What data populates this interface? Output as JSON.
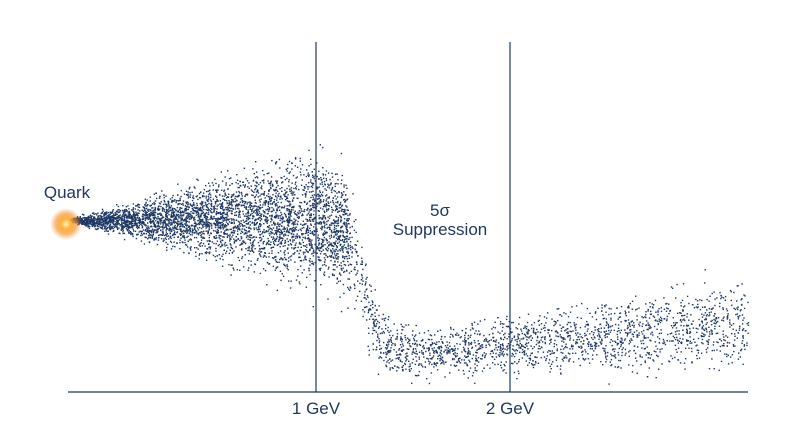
{
  "labels": {
    "source": "Quark",
    "significance": "5σ",
    "effect": "Suppression"
  },
  "axis": {
    "ticks": [
      "1 GeV",
      "2 GeV"
    ]
  }
}
